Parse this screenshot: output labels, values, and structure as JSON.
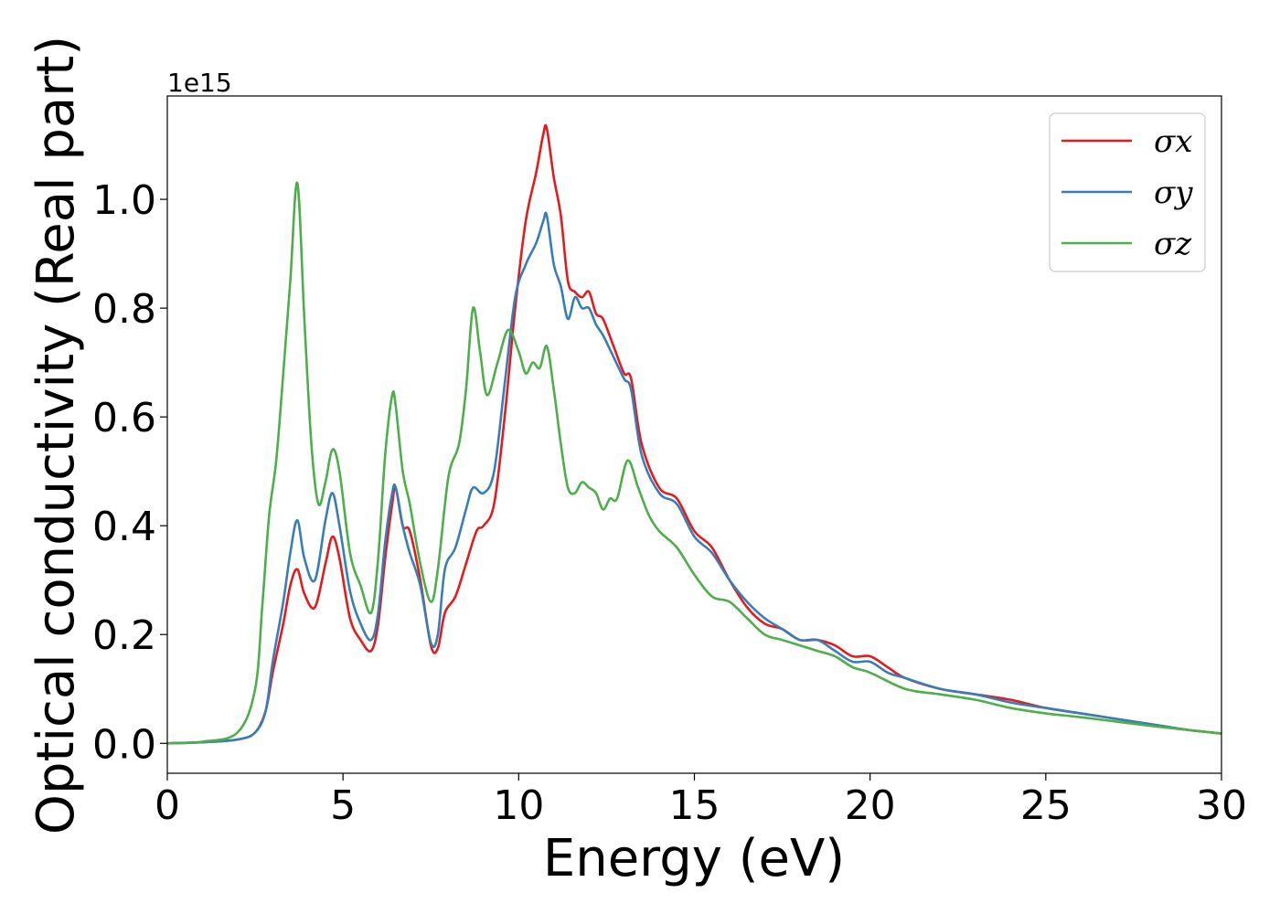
{
  "chart_data": {
    "type": "line",
    "title": "",
    "xlabel": "Energy (eV)",
    "ylabel": "Optical conductivity (Real part)",
    "y_offset_label": "1e15",
    "y_scale": 1000000000000000.0,
    "xlim": [
      0,
      30
    ],
    "ylim": [
      -0.055,
      1.19
    ],
    "x_ticks": [
      0,
      5,
      10,
      15,
      20,
      25,
      30
    ],
    "y_ticks": [
      0.0,
      0.2,
      0.4,
      0.6,
      0.8,
      1.0
    ],
    "grid": false,
    "legend_position": "top-right",
    "series": [
      {
        "name": "σx",
        "color": "#e41a1c",
        "x": [
          0,
          1,
          2,
          2.5,
          2.8,
          3.0,
          3.3,
          3.5,
          3.7,
          3.9,
          4.2,
          4.5,
          4.7,
          4.9,
          5.2,
          5.5,
          5.8,
          6.0,
          6.2,
          6.4,
          6.5,
          6.7,
          6.9,
          7.2,
          7.5,
          7.7,
          7.9,
          8.2,
          8.5,
          8.8,
          9.0,
          9.3,
          9.6,
          9.9,
          10.2,
          10.5,
          10.7,
          10.8,
          11.0,
          11.2,
          11.4,
          11.6,
          11.8,
          12.0,
          12.2,
          12.4,
          12.7,
          13.0,
          13.2,
          13.5,
          14.0,
          14.5,
          15.0,
          15.5,
          16.0,
          16.5,
          17.0,
          17.5,
          18.0,
          18.5,
          19.0,
          19.5,
          20.0,
          20.5,
          21.0,
          22.0,
          23.0,
          24.0,
          25.0,
          26.0,
          27.0,
          28.0,
          29.0,
          30.0
        ],
        "y": [
          0.0,
          0.002,
          0.007,
          0.02,
          0.06,
          0.13,
          0.22,
          0.29,
          0.32,
          0.275,
          0.25,
          0.33,
          0.38,
          0.34,
          0.23,
          0.19,
          0.17,
          0.22,
          0.34,
          0.44,
          0.47,
          0.4,
          0.39,
          0.3,
          0.18,
          0.175,
          0.24,
          0.27,
          0.33,
          0.39,
          0.4,
          0.44,
          0.6,
          0.8,
          0.96,
          1.05,
          1.12,
          1.13,
          1.04,
          0.97,
          0.85,
          0.83,
          0.82,
          0.83,
          0.79,
          0.78,
          0.73,
          0.68,
          0.67,
          0.55,
          0.47,
          0.45,
          0.39,
          0.36,
          0.3,
          0.25,
          0.22,
          0.21,
          0.19,
          0.19,
          0.18,
          0.16,
          0.16,
          0.14,
          0.12,
          0.1,
          0.09,
          0.08,
          0.065,
          0.055,
          0.045,
          0.035,
          0.025,
          0.018
        ]
      },
      {
        "name": "σy",
        "color": "#377eb8",
        "x": [
          0,
          1,
          2,
          2.5,
          2.8,
          3.0,
          3.3,
          3.5,
          3.7,
          3.9,
          4.2,
          4.5,
          4.7,
          4.9,
          5.2,
          5.5,
          5.8,
          6.0,
          6.2,
          6.4,
          6.5,
          6.7,
          6.9,
          7.2,
          7.5,
          7.7,
          7.9,
          8.2,
          8.5,
          8.7,
          9.0,
          9.3,
          9.6,
          9.9,
          10.2,
          10.5,
          10.7,
          10.8,
          11.0,
          11.2,
          11.4,
          11.6,
          11.8,
          12.0,
          12.2,
          12.4,
          12.7,
          13.0,
          13.2,
          13.5,
          14.0,
          14.5,
          15.0,
          15.5,
          16.0,
          16.5,
          17.0,
          17.5,
          18.0,
          18.5,
          19.0,
          19.5,
          20.0,
          20.5,
          21.0,
          22.0,
          23.0,
          24.0,
          25.0,
          26.0,
          27.0,
          28.0,
          29.0,
          30.0
        ],
        "y": [
          0.0,
          0.002,
          0.007,
          0.02,
          0.06,
          0.15,
          0.26,
          0.35,
          0.41,
          0.34,
          0.3,
          0.41,
          0.46,
          0.4,
          0.28,
          0.22,
          0.19,
          0.24,
          0.37,
          0.46,
          0.47,
          0.4,
          0.35,
          0.29,
          0.185,
          0.2,
          0.32,
          0.36,
          0.43,
          0.47,
          0.46,
          0.5,
          0.66,
          0.82,
          0.88,
          0.92,
          0.96,
          0.97,
          0.88,
          0.84,
          0.78,
          0.82,
          0.8,
          0.8,
          0.77,
          0.75,
          0.71,
          0.67,
          0.65,
          0.53,
          0.46,
          0.44,
          0.38,
          0.35,
          0.3,
          0.26,
          0.23,
          0.21,
          0.19,
          0.19,
          0.17,
          0.15,
          0.15,
          0.13,
          0.12,
          0.1,
          0.09,
          0.075,
          0.065,
          0.055,
          0.045,
          0.035,
          0.025,
          0.018
        ]
      },
      {
        "name": "σz",
        "color": "#4daf4a",
        "x": [
          0,
          1,
          2,
          2.5,
          2.7,
          2.9,
          3.1,
          3.3,
          3.5,
          3.7,
          3.9,
          4.1,
          4.3,
          4.5,
          4.7,
          4.9,
          5.2,
          5.5,
          5.8,
          6.0,
          6.2,
          6.4,
          6.5,
          6.7,
          6.9,
          7.2,
          7.5,
          7.7,
          8.0,
          8.3,
          8.5,
          8.7,
          8.9,
          9.1,
          9.4,
          9.7,
          10.0,
          10.2,
          10.4,
          10.6,
          10.8,
          11.0,
          11.2,
          11.4,
          11.6,
          11.8,
          12.0,
          12.2,
          12.4,
          12.6,
          12.8,
          13.1,
          13.4,
          13.7,
          14.0,
          14.5,
          15.0,
          15.5,
          16.0,
          16.5,
          17.0,
          17.5,
          18.0,
          18.5,
          19.0,
          19.5,
          20.0,
          21.0,
          22.0,
          23.0,
          24.0,
          25.0,
          26.0,
          27.0,
          28.0,
          29.0,
          30.0
        ],
        "y": [
          0.0,
          0.003,
          0.02,
          0.1,
          0.25,
          0.42,
          0.52,
          0.68,
          0.85,
          1.03,
          0.78,
          0.55,
          0.44,
          0.48,
          0.54,
          0.5,
          0.35,
          0.29,
          0.24,
          0.34,
          0.53,
          0.64,
          0.62,
          0.5,
          0.44,
          0.33,
          0.26,
          0.32,
          0.49,
          0.55,
          0.65,
          0.8,
          0.72,
          0.64,
          0.7,
          0.76,
          0.72,
          0.68,
          0.7,
          0.69,
          0.73,
          0.65,
          0.55,
          0.47,
          0.46,
          0.48,
          0.47,
          0.46,
          0.43,
          0.45,
          0.45,
          0.52,
          0.47,
          0.42,
          0.39,
          0.36,
          0.31,
          0.27,
          0.26,
          0.23,
          0.2,
          0.19,
          0.18,
          0.17,
          0.16,
          0.14,
          0.13,
          0.1,
          0.09,
          0.08,
          0.065,
          0.055,
          0.048,
          0.04,
          0.032,
          0.025,
          0.018
        ]
      }
    ]
  }
}
